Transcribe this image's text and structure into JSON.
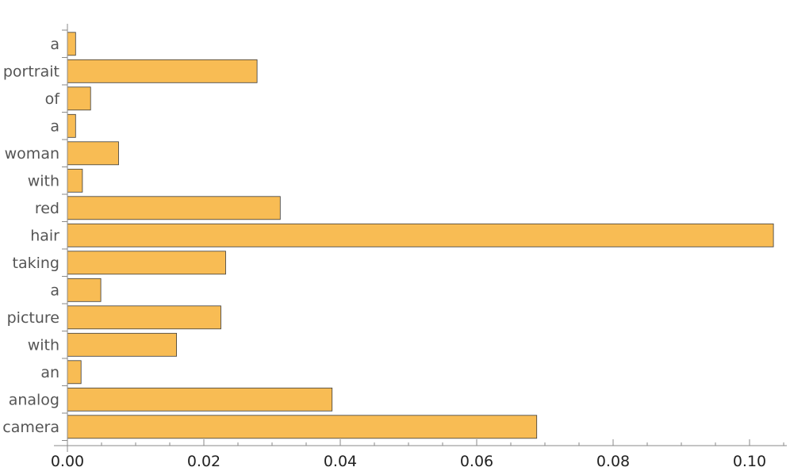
{
  "chart_data": {
    "type": "bar",
    "orientation": "horizontal",
    "title": "",
    "xlabel": "",
    "ylabel": "",
    "categories": [
      "a",
      "portrait",
      "of",
      "a",
      "woman",
      "with",
      "red",
      "hair",
      "taking",
      "a",
      "picture",
      "with",
      "an",
      "analog",
      "camera"
    ],
    "values": [
      0.0012,
      0.0278,
      0.0034,
      0.0012,
      0.0075,
      0.0022,
      0.0312,
      0.1035,
      0.0232,
      0.0049,
      0.0225,
      0.016,
      0.002,
      0.0388,
      0.0688
    ],
    "xlim": [
      0,
      0.105
    ],
    "xticks": [
      0.0,
      0.02,
      0.04,
      0.06,
      0.08,
      0.1
    ],
    "xtick_labels": [
      "0.00",
      "0.02",
      "0.04",
      "0.06",
      "0.08",
      "0.10"
    ],
    "grid": false,
    "legend": "none",
    "bar_color": "#F8BC54",
    "bar_edge_color": "#3A3A3A"
  }
}
